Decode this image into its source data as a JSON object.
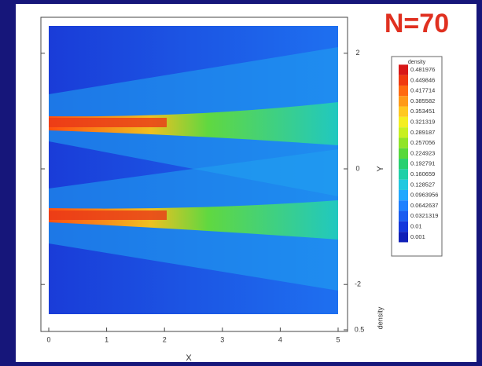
{
  "chart_data": {
    "type": "contour",
    "title": "N=70",
    "xlabel": "X",
    "ylabel": "Y",
    "xlim": [
      0,
      5
    ],
    "xticks": [
      0,
      1,
      2,
      3,
      4,
      5
    ],
    "ylim": [
      -2.5,
      2.5
    ],
    "yticks": [
      -2,
      0,
      2
    ],
    "extra_axis": {
      "label": "density",
      "ticks": [
        0.5
      ]
    },
    "colorbar": {
      "title": "density",
      "levels": [
        0.481976,
        0.449846,
        0.417714,
        0.385582,
        0.353451,
        0.321319,
        0.289187,
        0.257056,
        0.224923,
        0.192791,
        0.160659,
        0.128527,
        0.0963956,
        0.0642637,
        0.0321319,
        0.01,
        0.001
      ],
      "colors": [
        "#d81818",
        "#f03a10",
        "#ff6a10",
        "#ff9a18",
        "#ffc820",
        "#f4ee20",
        "#c8f020",
        "#90e428",
        "#58d83c",
        "#28d070",
        "#20d0a8",
        "#20c8e0",
        "#20a8ff",
        "#1e80ff",
        "#1a5cf0",
        "#1438dc",
        "#1020b8"
      ]
    }
  }
}
